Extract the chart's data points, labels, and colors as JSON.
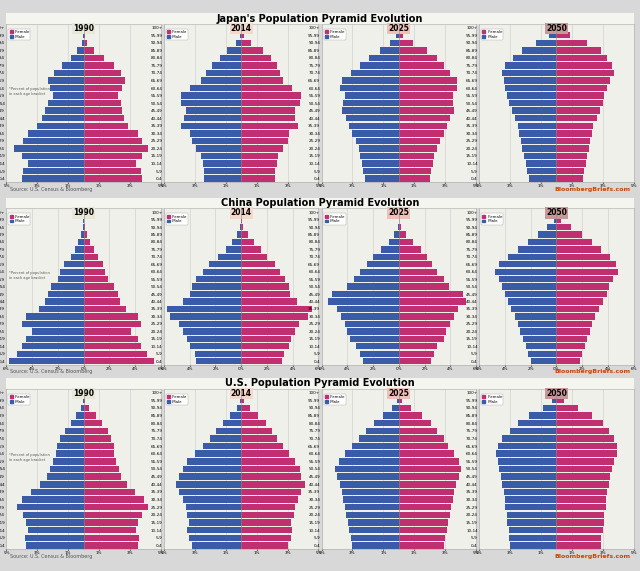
{
  "countries": [
    "japan",
    "china",
    "us"
  ],
  "years": [
    "1990",
    "2014",
    "2025",
    "2050"
  ],
  "age_groups": [
    "0-4",
    "5-9",
    "10-14",
    "15-19",
    "20-24",
    "25-29",
    "30-34",
    "35-39",
    "40-44",
    "45-49",
    "50-54",
    "55-59",
    "60-64",
    "65-69",
    "70-74",
    "75-79",
    "80-84",
    "85-89",
    "90-94",
    "95-99",
    "100+"
  ],
  "male_color": "#3a5ca8",
  "female_color": "#c03070",
  "year_header_colors": [
    "#e8e8d8",
    "#f5d8cc",
    "#efc0b8",
    "#c89898"
  ],
  "section_titles": [
    "Japan's Population Pyramid Evolution",
    "China Population Pyramid Evolution",
    "U.S. Population Pyramid Evolution"
  ],
  "source_text": "Source: U.S. Census & Bloomberg",
  "bloomberg_text": "BloombergBriefs.com",
  "note_text": "*Percent of population\nin each age bracket",
  "panel_bg": "#f0f0ea",
  "bg_color": "#d8d8d8",
  "border_color": "#aaaaaa",
  "grid_color": "#cccccc",
  "xlim_vals": [
    5,
    6,
    5
  ],
  "xtick_step": [
    2,
    2,
    2
  ],
  "japan": {
    "1990": {
      "male": [
        4.0,
        3.9,
        3.6,
        4.0,
        4.5,
        3.9,
        3.6,
        3.0,
        2.7,
        2.5,
        2.3,
        2.0,
        2.2,
        2.3,
        1.9,
        1.4,
        0.8,
        0.4,
        0.1,
        0.03,
        0.005
      ],
      "female": [
        3.8,
        3.7,
        3.4,
        3.8,
        4.2,
        3.8,
        3.5,
        2.9,
        2.6,
        2.5,
        2.4,
        2.2,
        2.5,
        2.7,
        2.4,
        2.0,
        1.3,
        0.7,
        0.25,
        0.07,
        0.01
      ]
    },
    "2014": {
      "male": [
        2.4,
        2.4,
        2.5,
        2.6,
        2.9,
        3.2,
        3.3,
        3.9,
        3.7,
        3.6,
        3.9,
        3.9,
        3.3,
        2.6,
        2.3,
        1.9,
        1.4,
        0.9,
        0.35,
        0.08,
        0.01
      ],
      "female": [
        2.2,
        2.2,
        2.3,
        2.4,
        2.7,
        3.0,
        3.1,
        3.7,
        3.5,
        3.5,
        3.8,
        3.9,
        3.3,
        2.7,
        2.5,
        2.3,
        1.9,
        1.4,
        0.65,
        0.18,
        0.025
      ]
    },
    "2025": {
      "male": [
        2.2,
        2.3,
        2.4,
        2.5,
        2.6,
        2.8,
        3.0,
        3.2,
        3.4,
        3.7,
        3.6,
        3.5,
        3.8,
        3.7,
        3.1,
        2.5,
        1.9,
        1.2,
        0.55,
        0.15,
        0.02
      ],
      "female": [
        2.0,
        2.1,
        2.2,
        2.3,
        2.5,
        2.7,
        2.9,
        3.1,
        3.3,
        3.6,
        3.5,
        3.5,
        3.8,
        3.8,
        3.3,
        2.9,
        2.5,
        1.8,
        0.95,
        0.3,
        0.045
      ]
    },
    "2050": {
      "male": [
        1.8,
        1.9,
        2.0,
        2.1,
        2.2,
        2.3,
        2.4,
        2.5,
        2.7,
        2.9,
        3.1,
        3.2,
        3.3,
        3.4,
        3.5,
        3.3,
        2.8,
        2.2,
        1.3,
        0.5,
        0.08
      ],
      "female": [
        1.7,
        1.8,
        1.9,
        2.0,
        2.1,
        2.2,
        2.3,
        2.4,
        2.6,
        2.8,
        3.0,
        3.1,
        3.3,
        3.5,
        3.7,
        3.6,
        3.3,
        2.9,
        2.0,
        0.9,
        0.16
      ]
    }
  },
  "china": {
    "1990": {
      "male": [
        5.8,
        5.2,
        4.8,
        4.5,
        4.0,
        4.8,
        4.5,
        3.5,
        3.0,
        2.8,
        2.5,
        2.0,
        1.8,
        1.5,
        1.0,
        0.7,
        0.4,
        0.2,
        0.07,
        0.015,
        0.002
      ],
      "female": [
        5.5,
        4.9,
        4.5,
        4.2,
        3.7,
        4.5,
        4.2,
        3.3,
        2.8,
        2.7,
        2.4,
        1.9,
        1.7,
        1.5,
        1.1,
        0.8,
        0.5,
        0.25,
        0.09,
        0.02,
        0.003
      ]
    },
    "2014": {
      "male": [
        3.5,
        3.6,
        4.0,
        4.2,
        4.5,
        4.8,
        5.5,
        5.8,
        4.5,
        4.0,
        3.8,
        3.5,
        3.0,
        2.5,
        1.8,
        1.2,
        0.7,
        0.3,
        0.08,
        0.015,
        0.002
      ],
      "female": [
        3.2,
        3.3,
        3.7,
        3.9,
        4.2,
        4.5,
        5.2,
        5.5,
        4.3,
        3.8,
        3.7,
        3.4,
        3.0,
        2.6,
        2.0,
        1.5,
        1.0,
        0.5,
        0.15,
        0.03,
        0.004
      ]
    },
    "2025": {
      "male": [
        2.8,
        3.0,
        3.3,
        3.8,
        4.0,
        4.2,
        4.5,
        4.8,
        5.5,
        5.2,
        4.0,
        3.5,
        3.0,
        2.5,
        2.0,
        1.4,
        0.8,
        0.35,
        0.1,
        0.02,
        0.003
      ],
      "female": [
        2.5,
        2.7,
        3.0,
        3.5,
        3.7,
        4.0,
        4.3,
        4.6,
        5.2,
        5.0,
        3.9,
        3.5,
        3.0,
        2.6,
        2.2,
        1.7,
        1.1,
        0.55,
        0.18,
        0.04,
        0.005
      ]
    },
    "2050": {
      "male": [
        2.0,
        2.2,
        2.4,
        2.6,
        2.8,
        3.0,
        3.2,
        3.5,
        3.8,
        4.0,
        4.2,
        4.5,
        4.8,
        4.5,
        3.8,
        3.0,
        2.2,
        1.4,
        0.7,
        0.2,
        0.03
      ],
      "female": [
        1.8,
        2.0,
        2.2,
        2.4,
        2.6,
        2.8,
        3.0,
        3.3,
        3.6,
        3.9,
        4.1,
        4.4,
        4.8,
        4.6,
        4.2,
        3.5,
        2.8,
        2.0,
        1.1,
        0.35,
        0.06
      ]
    }
  },
  "us": {
    "1990": {
      "male": [
        3.7,
        3.8,
        3.6,
        3.7,
        3.9,
        4.3,
        4.0,
        3.4,
        2.8,
        2.4,
        2.2,
        2.0,
        1.8,
        1.7,
        1.5,
        1.2,
        0.8,
        0.5,
        0.2,
        0.06,
        0.01
      ],
      "female": [
        3.5,
        3.6,
        3.4,
        3.5,
        3.8,
        4.2,
        3.9,
        3.3,
        2.8,
        2.4,
        2.3,
        2.1,
        2.0,
        2.0,
        1.8,
        1.6,
        1.2,
        0.8,
        0.35,
        0.1,
        0.015
      ]
    },
    "2014": {
      "male": [
        3.2,
        3.4,
        3.5,
        3.4,
        3.5,
        3.6,
        3.8,
        4.0,
        4.2,
        4.0,
        3.8,
        3.5,
        3.0,
        2.5,
        2.0,
        1.6,
        1.2,
        0.7,
        0.3,
        0.08,
        0.012
      ],
      "female": [
        3.0,
        3.2,
        3.3,
        3.2,
        3.4,
        3.5,
        3.7,
        3.9,
        4.1,
        3.9,
        3.8,
        3.5,
        3.1,
        2.7,
        2.3,
        2.0,
        1.6,
        1.1,
        0.55,
        0.16,
        0.025
      ]
    },
    "2025": {
      "male": [
        3.0,
        3.1,
        3.2,
        3.3,
        3.4,
        3.5,
        3.6,
        3.7,
        3.8,
        4.0,
        4.1,
        3.9,
        3.5,
        3.0,
        2.6,
        2.1,
        1.6,
        1.0,
        0.45,
        0.12,
        0.018
      ],
      "female": [
        2.9,
        3.0,
        3.1,
        3.2,
        3.3,
        3.4,
        3.5,
        3.6,
        3.7,
        3.9,
        4.0,
        3.9,
        3.6,
        3.2,
        2.9,
        2.5,
        2.1,
        1.5,
        0.78,
        0.23,
        0.035
      ]
    },
    "2050": {
      "male": [
        3.0,
        3.1,
        3.1,
        3.2,
        3.2,
        3.3,
        3.3,
        3.4,
        3.5,
        3.6,
        3.7,
        3.8,
        3.9,
        3.8,
        3.5,
        3.0,
        2.5,
        1.8,
        0.9,
        0.3,
        0.045
      ],
      "female": [
        2.9,
        2.9,
        3.0,
        3.1,
        3.1,
        3.2,
        3.2,
        3.3,
        3.4,
        3.5,
        3.6,
        3.7,
        3.9,
        3.9,
        3.7,
        3.4,
        3.0,
        2.3,
        1.4,
        0.5,
        0.08
      ]
    }
  }
}
